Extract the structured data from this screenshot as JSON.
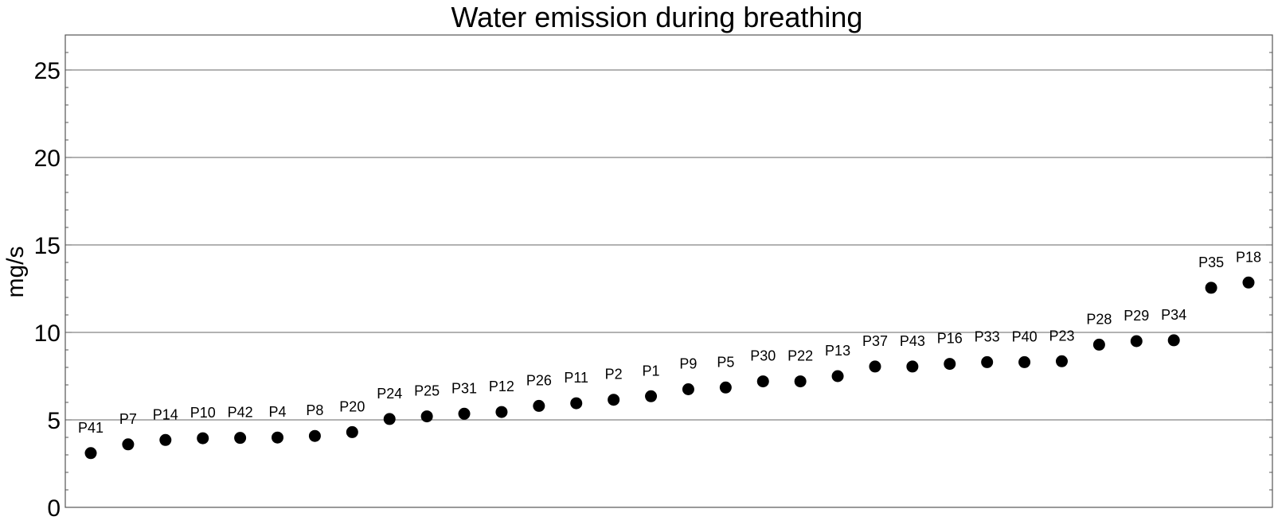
{
  "chart_data": {
    "type": "scatter",
    "title": "Water emission during breathing",
    "xlabel": "",
    "ylabel": "mg/s",
    "ylim": [
      0,
      27
    ],
    "yticks": [
      "0",
      "5",
      "10",
      "15",
      "20",
      "25"
    ],
    "grid": "horizontal",
    "point_color": "#000000",
    "points": [
      {
        "label": "P41",
        "y": 3.1
      },
      {
        "label": "P7",
        "y": 3.6
      },
      {
        "label": "P14",
        "y": 3.85
      },
      {
        "label": "P10",
        "y": 3.95
      },
      {
        "label": "P42",
        "y": 3.97
      },
      {
        "label": "P4",
        "y": 3.99
      },
      {
        "label": "P8",
        "y": 4.08
      },
      {
        "label": "P20",
        "y": 4.3
      },
      {
        "label": "P24",
        "y": 5.05
      },
      {
        "label": "P25",
        "y": 5.2
      },
      {
        "label": "P31",
        "y": 5.35
      },
      {
        "label": "P12",
        "y": 5.45
      },
      {
        "label": "P26",
        "y": 5.8
      },
      {
        "label": "P11",
        "y": 5.95
      },
      {
        "label": "P2",
        "y": 6.15
      },
      {
        "label": "P1",
        "y": 6.35
      },
      {
        "label": "P9",
        "y": 6.75
      },
      {
        "label": "P5",
        "y": 6.85
      },
      {
        "label": "P30",
        "y": 7.2
      },
      {
        "label": "P22",
        "y": 7.2
      },
      {
        "label": "P13",
        "y": 7.5
      },
      {
        "label": "P37",
        "y": 8.05
      },
      {
        "label": "P43",
        "y": 8.05
      },
      {
        "label": "P16",
        "y": 8.2
      },
      {
        "label": "P33",
        "y": 8.3
      },
      {
        "label": "P40",
        "y": 8.3
      },
      {
        "label": "P23",
        "y": 8.35
      },
      {
        "label": "P28",
        "y": 9.3
      },
      {
        "label": "P29",
        "y": 9.5
      },
      {
        "label": "P34",
        "y": 9.55
      },
      {
        "label": "P35",
        "y": 12.55
      },
      {
        "label": "P18",
        "y": 12.85
      }
    ]
  }
}
